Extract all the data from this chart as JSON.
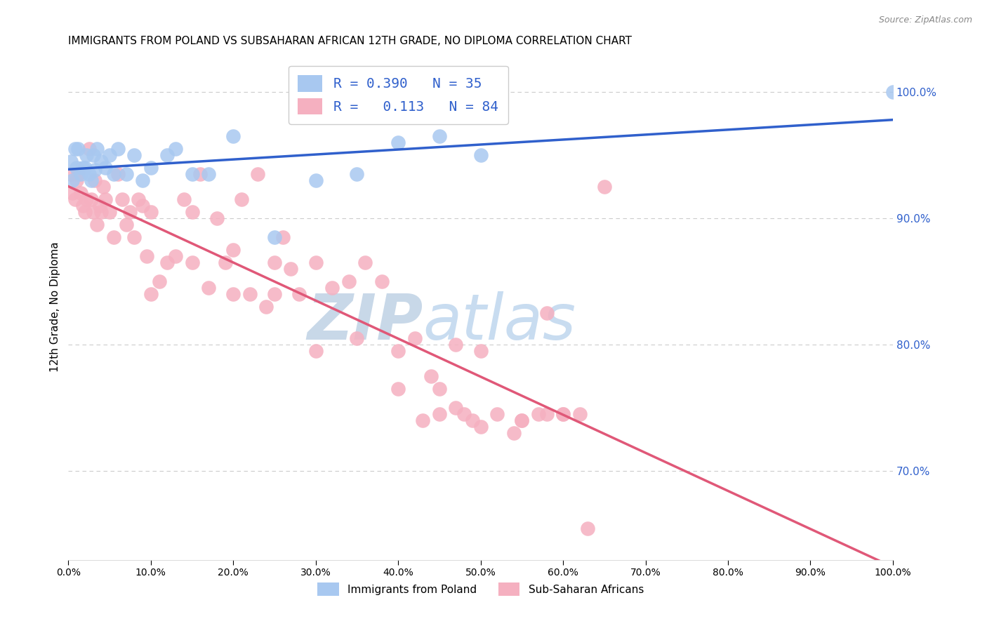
{
  "title": "IMMIGRANTS FROM POLAND VS SUBSAHARAN AFRICAN 12TH GRADE, NO DIPLOMA CORRELATION CHART",
  "source": "Source: ZipAtlas.com",
  "ylabel": "12th Grade, No Diploma",
  "R_poland": 0.39,
  "N_poland": 35,
  "R_subsaharan": 0.113,
  "N_subsaharan": 84,
  "legend_poland": "Immigrants from Poland",
  "legend_subsaharan": "Sub-Saharan Africans",
  "poland_color": "#A8C8F0",
  "subsaharan_color": "#F5B0C0",
  "poland_line_color": "#3060CC",
  "subsaharan_line_color": "#E05878",
  "watermark_zip_color": "#C8D8E8",
  "watermark_atlas_color": "#C8DCF0",
  "xmin": 0,
  "xmax": 100,
  "ymin": 63,
  "ymax": 103,
  "poland_x": [
    0.3,
    0.5,
    0.8,
    1.0,
    1.2,
    1.5,
    1.8,
    2.0,
    2.2,
    2.5,
    2.8,
    3.0,
    3.2,
    3.5,
    4.0,
    4.5,
    5.0,
    5.5,
    6.0,
    7.0,
    8.0,
    9.0,
    10.0,
    12.0,
    13.0,
    15.0,
    17.0,
    20.0,
    25.0,
    30.0,
    35.0,
    40.0,
    45.0,
    50.0,
    100.0
  ],
  "poland_y": [
    94.5,
    93.0,
    95.5,
    94.0,
    95.5,
    93.5,
    94.0,
    94.0,
    95.0,
    93.5,
    93.0,
    95.0,
    93.8,
    95.5,
    94.5,
    94.0,
    95.0,
    93.5,
    95.5,
    93.5,
    95.0,
    93.0,
    94.0,
    95.0,
    95.5,
    93.5,
    93.5,
    96.5,
    88.5,
    93.0,
    93.5,
    96.0,
    96.5,
    95.0,
    100.0
  ],
  "subsaharan_x": [
    0.3,
    0.5,
    0.8,
    1.0,
    1.2,
    1.5,
    1.8,
    2.0,
    2.2,
    2.5,
    2.8,
    3.0,
    3.2,
    3.5,
    3.8,
    4.0,
    4.2,
    4.5,
    5.0,
    5.5,
    6.0,
    6.5,
    7.0,
    7.5,
    8.0,
    8.5,
    9.0,
    9.5,
    10.0,
    11.0,
    12.0,
    13.0,
    14.0,
    15.0,
    16.0,
    17.0,
    18.0,
    19.0,
    20.0,
    21.0,
    22.0,
    23.0,
    24.0,
    25.0,
    26.0,
    27.0,
    28.0,
    30.0,
    32.0,
    34.0,
    36.0,
    38.0,
    40.0,
    42.0,
    44.0,
    45.0,
    47.0,
    50.0,
    55.0,
    58.0,
    60.0,
    65.0
  ],
  "subsaharan_y": [
    93.5,
    92.0,
    91.5,
    93.0,
    93.5,
    92.0,
    91.0,
    90.5,
    91.5,
    95.5,
    91.5,
    90.5,
    93.0,
    89.5,
    91.0,
    90.5,
    92.5,
    91.5,
    90.5,
    88.5,
    93.5,
    91.5,
    89.5,
    90.5,
    88.5,
    91.5,
    91.0,
    87.0,
    90.5,
    85.0,
    86.5,
    87.0,
    91.5,
    90.5,
    93.5,
    84.5,
    90.0,
    86.5,
    87.5,
    91.5,
    84.0,
    93.5,
    83.0,
    84.0,
    88.5,
    86.0,
    84.0,
    86.5,
    84.5,
    85.0,
    86.5,
    85.0,
    79.5,
    80.5,
    77.5,
    76.5,
    80.0,
    79.5,
    74.0,
    82.5,
    74.5,
    92.5
  ],
  "subsaharan_x2": [
    10.0,
    15.0,
    20.0,
    25.0,
    30.0,
    35.0,
    40.0,
    43.0,
    45.0,
    47.0,
    48.0,
    49.0,
    50.0,
    52.0,
    54.0,
    55.0,
    57.0,
    58.0,
    60.0,
    62.0,
    63.0
  ],
  "subsaharan_y2": [
    84.0,
    86.5,
    84.0,
    86.5,
    79.5,
    80.5,
    76.5,
    74.0,
    74.5,
    75.0,
    74.5,
    74.0,
    73.5,
    74.5,
    73.0,
    74.0,
    74.5,
    74.5,
    74.5,
    74.5,
    65.5
  ]
}
